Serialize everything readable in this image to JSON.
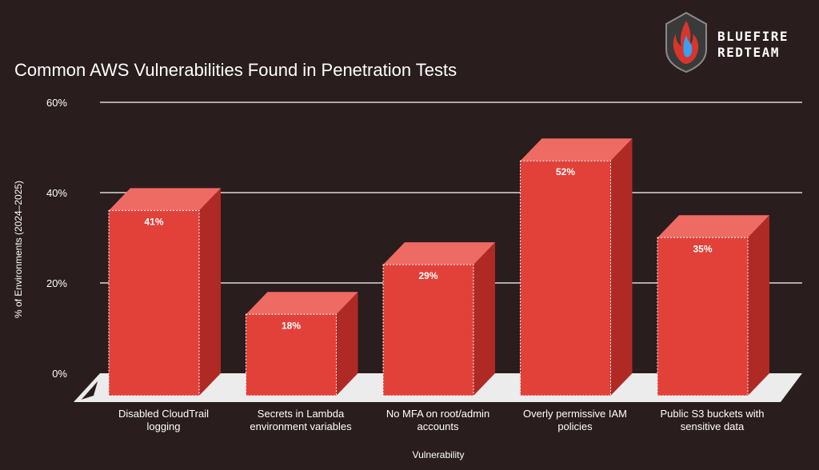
{
  "brand": {
    "line1": "BLUEFIRE",
    "line2": "REDTEAM",
    "logo": "shield-flame-icon"
  },
  "chart_data": {
    "type": "bar",
    "title": "Common AWS Vulnerabilities Found in Penetration Tests",
    "xlabel": "Vulnerability",
    "ylabel": "% of Environments (2024–2025)",
    "ylim": [
      0,
      60
    ],
    "yticks": [
      "0%",
      "20%",
      "40%",
      "60%"
    ],
    "grid": true,
    "style": "3d",
    "categories": [
      "Disabled CloudTrail logging",
      "Secrets in Lambda environment variables",
      "No MFA on root/admin accounts",
      "Overly permissive IAM policies",
      "Public S3 buckets with sensitive data"
    ],
    "category_lines": [
      [
        "Disabled CloudTrail",
        "logging"
      ],
      [
        "Secrets in Lambda",
        "environment variables"
      ],
      [
        "No MFA on root/admin",
        "accounts"
      ],
      [
        "Overly permissive IAM",
        "policies"
      ],
      [
        "Public S3 buckets with",
        "sensitive data"
      ]
    ],
    "values": [
      41,
      18,
      29,
      52,
      35
    ],
    "data_labels": [
      "41%",
      "18%",
      "29%",
      "52%",
      "35%"
    ],
    "colors": {
      "bar_front": "#e2413a",
      "bar_top": "#ee6b63",
      "bar_side": "#b02a25",
      "floor": "#ececec",
      "grid": "#ffffff",
      "background": "#2a1d1d"
    }
  }
}
